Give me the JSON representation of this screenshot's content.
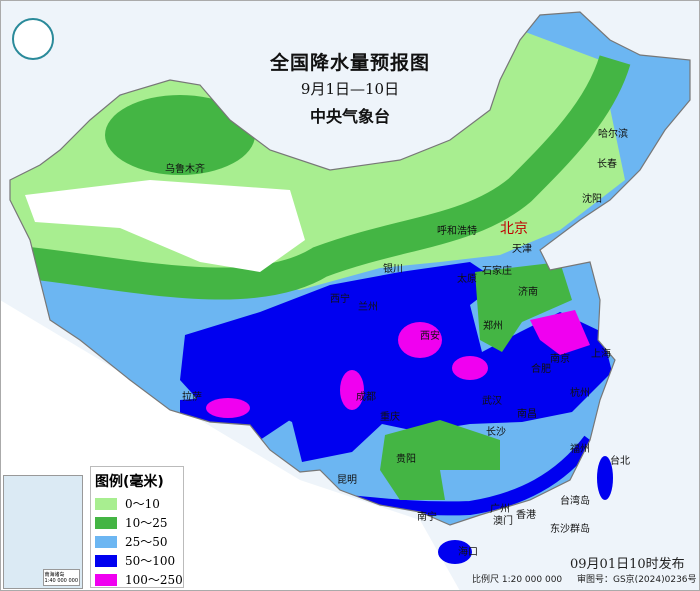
{
  "header": {
    "title": "全国降水量预报图",
    "period": "9月1日—10日",
    "issuer": "中央气象台"
  },
  "legend": {
    "title": "图例(毫米)",
    "items": [
      {
        "label": "0～10",
        "color": "#a8ee90"
      },
      {
        "label": "10～25",
        "color": "#44b544"
      },
      {
        "label": "25～50",
        "color": "#6cb6f2"
      },
      {
        "label": "50～100",
        "color": "#0000f0"
      },
      {
        "label": "100～250",
        "color": "#f000f0"
      }
    ]
  },
  "cities": [
    "乌鲁木齐",
    "哈尔滨",
    "长春",
    "沈阳",
    "北京",
    "天津",
    "呼和浩特",
    "银川",
    "石家庄",
    "太原",
    "济南",
    "西宁",
    "兰州",
    "郑州",
    "西安",
    "合肥",
    "南京",
    "上海",
    "成都",
    "重庆",
    "武汉",
    "长沙",
    "南昌",
    "杭州",
    "福州",
    "台北",
    "拉萨",
    "贵阳",
    "昆明",
    "南宁",
    "广州",
    "澳门",
    "香港",
    "海口",
    "东沙群岛",
    "台湾岛"
  ],
  "inset": {
    "label": "南海诸岛",
    "scale": "1:40 000 000"
  },
  "footer": {
    "published": "09月01日10时发布",
    "scale": "比例尺 1:20 000 000",
    "review_number": "审图号：GS京(2024)0236号"
  },
  "colors": {
    "sea": "#eef4fa",
    "land_outside": "#ffffff"
  }
}
